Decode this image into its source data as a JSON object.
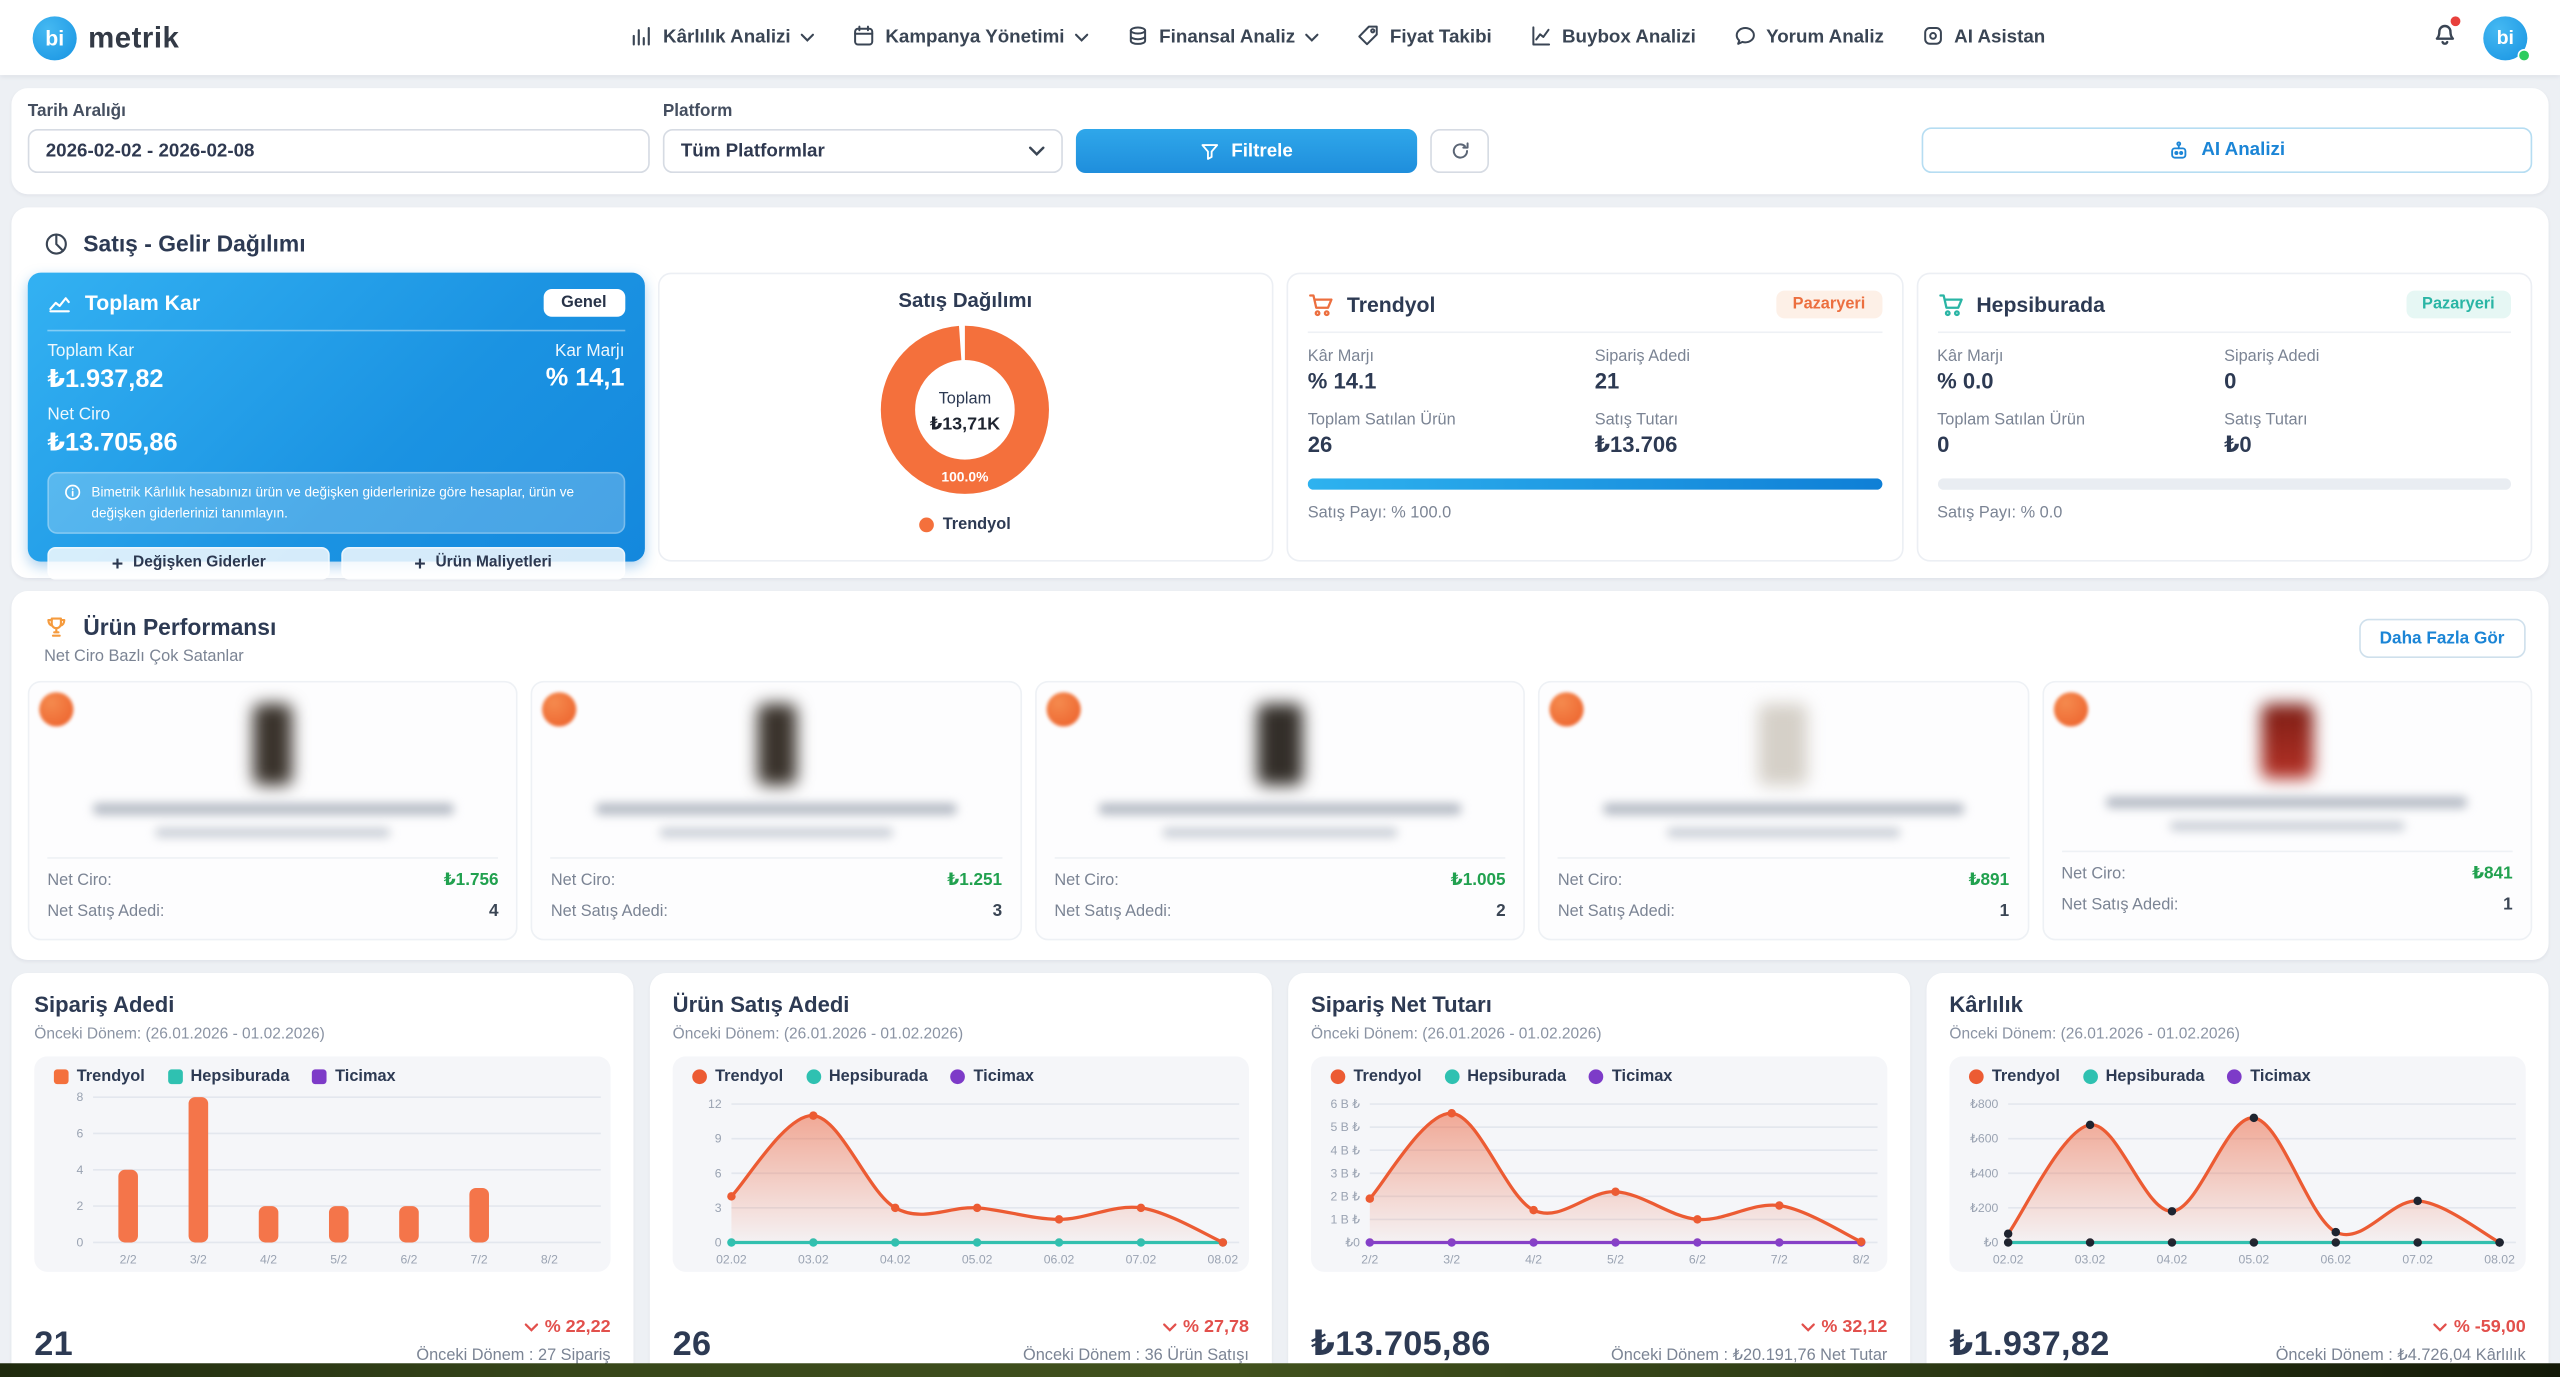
{
  "brand": {
    "logo_circle": "bi",
    "logo_text": "metrik"
  },
  "nav": {
    "items": [
      {
        "label": "Kârlılık Analizi",
        "dropdown": true
      },
      {
        "label": "Kampanya Yönetimi",
        "dropdown": true
      },
      {
        "label": "Finansal Analiz",
        "dropdown": true
      },
      {
        "label": "Fiyat Takibi",
        "dropdown": false
      },
      {
        "label": "Buybox Analizi",
        "dropdown": false
      },
      {
        "label": "Yorum Analiz",
        "dropdown": false
      },
      {
        "label": "AI Asistan",
        "dropdown": false
      }
    ],
    "avatar_text": "bi"
  },
  "filters": {
    "date_label": "Tarih Aralığı",
    "date_value": "2026-02-02 - 2026-02-08",
    "platform_label": "Platform",
    "platform_value": "Tüm Platformlar",
    "filter_button": "Filtrele",
    "ai_button": "AI Analizi"
  },
  "sales_section": {
    "title": "Satış - Gelir Dağılımı",
    "profit_card": {
      "title": "Toplam Kar",
      "badge": "Genel",
      "total_label": "Toplam Kar",
      "total_value": "₺1.937,82",
      "margin_label": "Kar Marjı",
      "margin_value": "% 14,1",
      "ciro_label": "Net Ciro",
      "ciro_value": "₺13.705,86",
      "info": "Bimetrik Kârlılık hesabınızı ürün ve değişken giderlerinize göre hesaplar, ürün ve değişken giderlerinizi tanımlayın.",
      "btn_variable": "Değişken Giderler",
      "btn_product": "Ürün Maliyetleri"
    },
    "labels": {
      "margin": "Kâr Marjı",
      "orders": "Sipariş Adedi",
      "units": "Toplam Satılan Ürün",
      "amount": "Satış Tutarı"
    },
    "marketplaces": [
      {
        "name": "Trendyol",
        "badge": "Pazaryeri",
        "margin": "% 14.1",
        "orders": "21",
        "units": "26",
        "amount": "₺13.706",
        "share_text": "Satış Payı: % 100.0",
        "share_pct": 100,
        "accent": "#ec6f3f"
      },
      {
        "name": "Hepsiburada",
        "badge": "Pazaryeri",
        "margin": "% 0.0",
        "orders": "0",
        "units": "0",
        "amount": "₺0",
        "share_text": "Satış Payı: % 0.0",
        "share_pct": 0,
        "accent": "#2ab5a5"
      }
    ]
  },
  "products_section": {
    "title": "Ürün Performansı",
    "subtitle": "Net Ciro Bazlı Çok Satanlar",
    "more_button": "Daha Fazla Gör",
    "net_ciro_label": "Net Ciro:",
    "net_sales_label": "Net Satış Adedi:",
    "cards": [
      {
        "net_ciro": "₺1.756",
        "net_sales": "4"
      },
      {
        "net_ciro": "₺1.251",
        "net_sales": "3"
      },
      {
        "net_ciro": "₺1.005",
        "net_sales": "2"
      },
      {
        "net_ciro": "₺891",
        "net_sales": "1"
      },
      {
        "net_ciro": "₺841",
        "net_sales": "1"
      }
    ]
  },
  "chart_data": [
    {
      "type": "pie",
      "title": "Satış Dağılımı",
      "center_label": "Toplam",
      "center_value": "₺13,71K",
      "slice_label": "100.0%",
      "labels": [
        "Trendyol"
      ],
      "values": [
        100
      ],
      "colors": [
        "#f4703c"
      ],
      "legend": [
        {
          "label": "Trendyol",
          "color": "#f4703c"
        }
      ]
    },
    {
      "type": "bar",
      "title": "Sipariş Adedi",
      "categories": [
        "2/2",
        "3/2",
        "4/2",
        "5/2",
        "6/2",
        "7/2",
        "8/2"
      ],
      "series": [
        {
          "name": "Trendyol",
          "color": "#f4754a",
          "values": [
            4,
            8,
            2,
            2,
            2,
            3,
            0
          ]
        }
      ],
      "legend": [
        {
          "label": "Trendyol",
          "color": "#f4703c"
        },
        {
          "label": "Hepsiburada",
          "color": "#2fc1b1"
        },
        {
          "label": "Ticimax",
          "color": "#7d3bc8"
        }
      ],
      "legend_shape": "square",
      "ytick_values": [
        0,
        2,
        4,
        6,
        8
      ],
      "ytick_labels": [
        "0",
        "2",
        "4",
        "6",
        "8"
      ],
      "ymax": 8,
      "xlabel": "",
      "ylabel": ""
    },
    {
      "type": "line",
      "title": "Ürün Satış Adedi",
      "categories": [
        "02.02",
        "03.02",
        "04.02",
        "05.02",
        "06.02",
        "07.02",
        "08.02"
      ],
      "series": [
        {
          "name": "Trendyol",
          "color": "#ec5b33",
          "marker": "#ec5b33",
          "area": true,
          "values": [
            4,
            11,
            3,
            3,
            2,
            3,
            0
          ]
        },
        {
          "name": "Hepsiburada",
          "color": "#2fc1b1",
          "marker": "#2fc1b1",
          "values": [
            0,
            0,
            0,
            0,
            0,
            0,
            0
          ]
        }
      ],
      "legend": [
        {
          "label": "Trendyol",
          "color": "#ec5b33"
        },
        {
          "label": "Hepsiburada",
          "color": "#2fc1b1"
        },
        {
          "label": "Ticimax",
          "color": "#7d3bc8"
        }
      ],
      "legend_shape": "dot",
      "ytick_values": [
        0,
        3,
        6,
        9,
        12
      ],
      "ytick_labels": [
        "0",
        "3",
        "6",
        "9",
        "12"
      ],
      "ymax": 12.6,
      "xlabel": "",
      "ylabel": ""
    },
    {
      "type": "line",
      "title": "Sipariş Net Tutarı",
      "categories": [
        "2/2",
        "3/2",
        "4/2",
        "5/2",
        "6/2",
        "7/2",
        "8/2"
      ],
      "series": [
        {
          "name": "Trendyol",
          "color": "#ec5b33",
          "marker": "#ec5b33",
          "area": true,
          "values": [
            1900,
            5600,
            1400,
            2200,
            1000,
            1600,
            30
          ]
        },
        {
          "name": "Ticimax",
          "color": "#8440c9",
          "marker": "#8440c9",
          "values": [
            0,
            0,
            0,
            0,
            0,
            0,
            0
          ]
        }
      ],
      "legend": [
        {
          "label": "Trendyol",
          "color": "#ec5b33"
        },
        {
          "label": "Hepsiburada",
          "color": "#2fc1b1"
        },
        {
          "label": "Ticimax",
          "color": "#7d3bc8"
        }
      ],
      "legend_shape": "dot",
      "ytick_values": [
        0,
        1000,
        2000,
        3000,
        4000,
        5000,
        6000
      ],
      "ytick_labels": [
        "₺0",
        "1 B ₺",
        "2 B ₺",
        "3 B ₺",
        "4 B ₺",
        "5 B ₺",
        "6 B ₺"
      ],
      "ymax": 6300,
      "xlabel": "",
      "ylabel": ""
    },
    {
      "type": "line",
      "title": "Kârlılık",
      "categories": [
        "02.02",
        "03.02",
        "04.02",
        "05.02",
        "06.02",
        "07.02",
        "08.02"
      ],
      "series": [
        {
          "name": "Trendyol",
          "color": "#ec5b33",
          "marker": "#1e2430",
          "area": true,
          "values": [
            50,
            680,
            180,
            720,
            60,
            240,
            0
          ]
        },
        {
          "name": "Hepsiburada",
          "color": "#2fc1b1",
          "marker": "#1e2430",
          "values": [
            0,
            0,
            0,
            0,
            0,
            0,
            0
          ]
        }
      ],
      "legend": [
        {
          "label": "Trendyol",
          "color": "#ec5b33"
        },
        {
          "label": "Hepsiburada",
          "color": "#2fc1b1"
        },
        {
          "label": "Ticimax",
          "color": "#7d3bc8"
        }
      ],
      "legend_shape": "dot",
      "ytick_values": [
        0,
        200,
        400,
        600,
        800
      ],
      "ytick_labels": [
        "₺0",
        "₺200",
        "₺400",
        "₺600",
        "₺800"
      ],
      "ymax": 840,
      "xlabel": "",
      "ylabel": ""
    }
  ],
  "metric_cards": [
    {
      "period": "Önceki Dönem: (26.01.2026 - 01.02.2026)",
      "value": "21",
      "change": "% 22,22",
      "prev": "Önceki Dönem : 27 Sipariş"
    },
    {
      "period": "Önceki Dönem: (26.01.2026 - 01.02.2026)",
      "value": "26",
      "change": "% 27,78",
      "prev": "Önceki Dönem : 36 Ürün Satışı"
    },
    {
      "period": "Önceki Dönem: (26.01.2026 - 01.02.2026)",
      "value": "₺13.705,86",
      "change": "% 32,12",
      "prev": "Önceki Dönem : ₺20.191,76 Net Tutar"
    },
    {
      "period": "Önceki Dönem: (26.01.2026 - 01.02.2026)",
      "value": "₺1.937,82",
      "change": "% -59,00",
      "prev": "Önceki Dönem : ₺4.726,04 Kârlılık"
    }
  ]
}
